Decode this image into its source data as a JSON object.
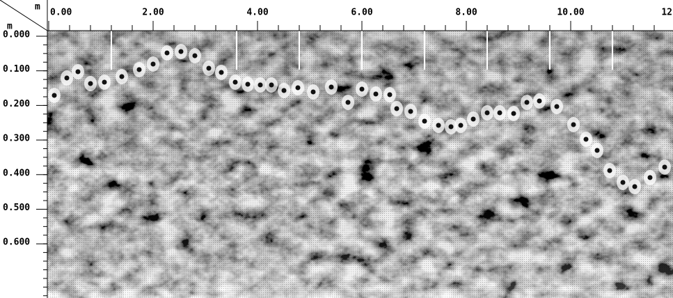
{
  "x_axis": {
    "unit": "m",
    "ticks": [
      "0.00",
      "2.00",
      "4.00",
      "6.00",
      "8.00",
      "10.00",
      "12"
    ]
  },
  "y_axis": {
    "unit": "m",
    "ticks": [
      "0.000",
      "0.100",
      "0.200",
      "0.300",
      "0.400",
      "0.500",
      "0.600"
    ]
  }
}
